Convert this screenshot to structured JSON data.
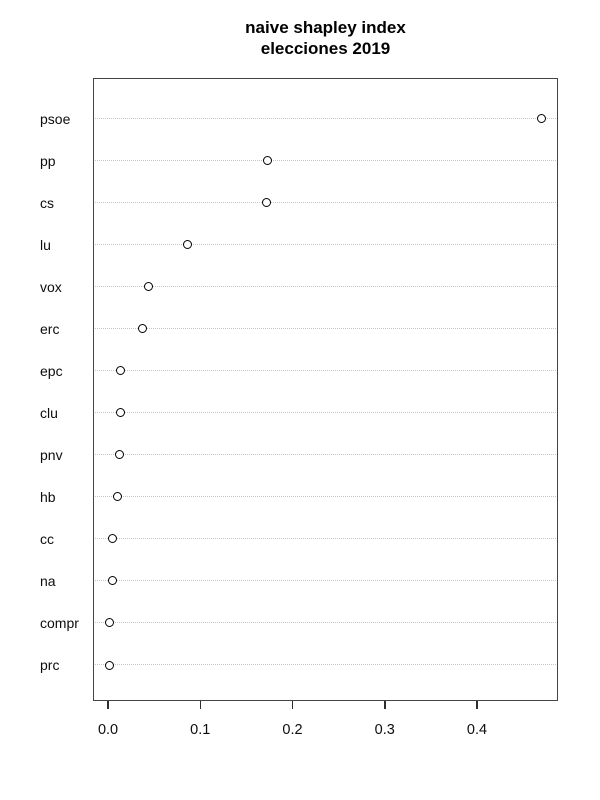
{
  "title": {
    "line1": "naive shapley index",
    "line2": "elecciones 2019"
  },
  "chart_data": {
    "type": "scatter",
    "subtype": "cleveland-dotchart",
    "title": "naive shapley index",
    "subtitle": "elecciones 2019",
    "xlabel": "",
    "ylabel": "",
    "categories": [
      "psoe",
      "pp",
      "cs",
      "lu",
      "vox",
      "erc",
      "epc",
      "clu",
      "pnv",
      "hb",
      "cc",
      "na",
      "compr",
      "prc"
    ],
    "values": [
      0.47,
      0.173,
      0.172,
      0.086,
      0.044,
      0.037,
      0.014,
      0.014,
      0.012,
      0.01,
      0.005,
      0.005,
      0.002,
      0.002
    ],
    "x_ticks": [
      "0.0",
      "0.1",
      "0.2",
      "0.3",
      "0.4"
    ],
    "x_tick_values": [
      0.0,
      0.1,
      0.2,
      0.3,
      0.4
    ],
    "xlim": [
      -0.0163,
      0.4878
    ],
    "grid": "horizontal dotted lines, one per category",
    "legend": "none",
    "marker": "open-circle",
    "colors": {
      "marker_stroke": "#000000",
      "marker_fill": "#ffffff",
      "gridline": "#c6c6c6",
      "plot_border": "#454545",
      "text": "#0d0d0d",
      "background": "#ffffff"
    }
  }
}
